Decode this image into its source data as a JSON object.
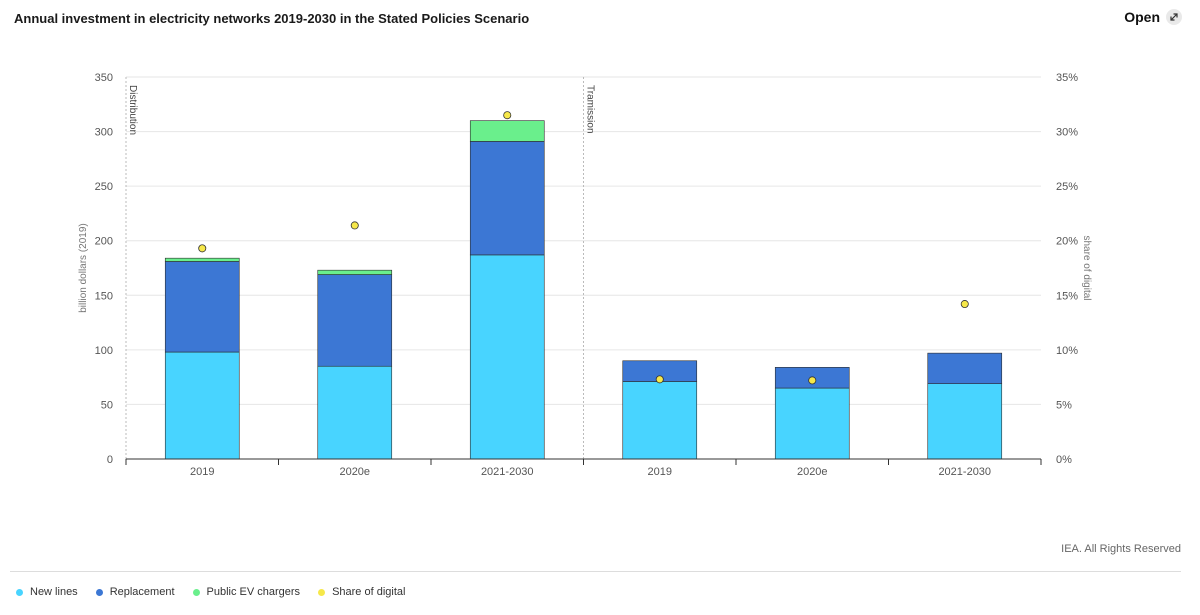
{
  "header": {
    "title": "Annual investment in electricity networks 2019-2030 in the Stated Policies Scenario",
    "open_label": "Open",
    "open_icon": "expand-icon"
  },
  "footer": {
    "rights": "IEA. All Rights Reserved"
  },
  "chart_data": {
    "type": "bar",
    "stacked": true,
    "categories": [
      "2019",
      "2020e",
      "2021-2030",
      "2019",
      "2020e",
      "2021-2030"
    ],
    "groups": [
      {
        "label": "Distribution",
        "categories": [
          0,
          1,
          2
        ]
      },
      {
        "label": "Tramission",
        "categories": [
          3,
          4,
          5
        ]
      }
    ],
    "series": [
      {
        "name": "New lines",
        "type": "bar",
        "axis": "left",
        "color": "#48d4ff",
        "values": [
          98,
          85,
          187,
          71,
          65,
          69
        ]
      },
      {
        "name": "Replacement",
        "type": "bar",
        "axis": "left",
        "color": "#3c77d4",
        "values": [
          83,
          84,
          104,
          19,
          19,
          28
        ]
      },
      {
        "name": "Public EV chargers",
        "type": "bar",
        "axis": "left",
        "color": "#6aef8c",
        "values": [
          3,
          4,
          19,
          0,
          0,
          0
        ]
      },
      {
        "name": "Share of digital",
        "type": "scatter",
        "axis": "right",
        "color": "#f6e84a",
        "values": [
          19.3,
          21.4,
          31.5,
          7.3,
          7.2,
          14.2
        ]
      }
    ],
    "ylabel": "billion dollars (2019)",
    "y2label": "share of digital",
    "ylim": [
      0,
      350
    ],
    "y2lim": [
      0,
      35
    ],
    "yticks": [
      "0",
      "50",
      "100",
      "150",
      "200",
      "250",
      "300",
      "350"
    ],
    "y2ticks": [
      "0%",
      "5%",
      "10%",
      "15%",
      "20%",
      "25%",
      "30%",
      "35%"
    ],
    "grid": true,
    "legend_position": "bottom-left"
  }
}
